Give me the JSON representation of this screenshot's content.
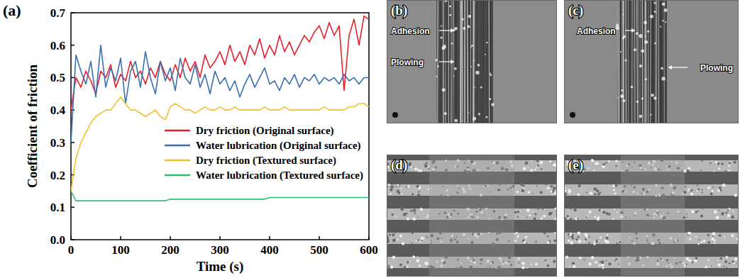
{
  "chart_data": {
    "type": "line",
    "panel_label": "(a)",
    "x_label": "Time (s)",
    "y_label": "Coefficient of friction",
    "x": [
      0,
      10,
      20,
      30,
      40,
      50,
      60,
      70,
      80,
      90,
      100,
      110,
      120,
      130,
      140,
      150,
      160,
      170,
      180,
      190,
      200,
      210,
      220,
      230,
      240,
      250,
      260,
      270,
      280,
      290,
      300,
      310,
      320,
      330,
      340,
      350,
      360,
      370,
      380,
      390,
      400,
      410,
      420,
      430,
      440,
      450,
      460,
      470,
      480,
      490,
      500,
      510,
      520,
      530,
      540,
      550,
      560,
      570,
      580,
      590,
      600
    ],
    "series": [
      {
        "name": "Dry friction (Original surface)",
        "color": "#e8202a",
        "values": [
          0.4,
          0.5,
          0.47,
          0.52,
          0.49,
          0.45,
          0.52,
          0.5,
          0.54,
          0.47,
          0.51,
          0.49,
          0.55,
          0.5,
          0.52,
          0.48,
          0.53,
          0.5,
          0.55,
          0.51,
          0.49,
          0.54,
          0.5,
          0.56,
          0.52,
          0.55,
          0.5,
          0.57,
          0.53,
          0.55,
          0.58,
          0.54,
          0.6,
          0.55,
          0.58,
          0.54,
          0.6,
          0.57,
          0.62,
          0.56,
          0.6,
          0.57,
          0.63,
          0.58,
          0.61,
          0.57,
          0.6,
          0.63,
          0.61,
          0.64,
          0.66,
          0.62,
          0.67,
          0.63,
          0.66,
          0.46,
          0.63,
          0.68,
          0.6,
          0.69,
          0.68
        ]
      },
      {
        "name": "Water lubrication (Original surface)",
        "color": "#3a6fb0",
        "values": [
          0.3,
          0.57,
          0.52,
          0.48,
          0.55,
          0.44,
          0.6,
          0.47,
          0.53,
          0.49,
          0.56,
          0.42,
          0.52,
          0.55,
          0.47,
          0.58,
          0.5,
          0.45,
          0.55,
          0.49,
          0.53,
          0.46,
          0.56,
          0.5,
          0.48,
          0.54,
          0.47,
          0.51,
          0.45,
          0.52,
          0.48,
          0.5,
          0.46,
          0.49,
          0.44,
          0.48,
          0.51,
          0.47,
          0.5,
          0.53,
          0.48,
          0.49,
          0.46,
          0.5,
          0.48,
          0.51,
          0.47,
          0.5,
          0.49,
          0.51,
          0.48,
          0.5,
          0.49,
          0.5,
          0.48,
          0.51,
          0.49,
          0.5,
          0.48,
          0.5,
          0.5
        ]
      },
      {
        "name": "Dry friction (Textured surface)",
        "color": "#f2c12e",
        "values": [
          0.15,
          0.25,
          0.3,
          0.33,
          0.36,
          0.38,
          0.39,
          0.4,
          0.4,
          0.42,
          0.44,
          0.42,
          0.4,
          0.4,
          0.39,
          0.38,
          0.39,
          0.4,
          0.38,
          0.37,
          0.41,
          0.42,
          0.41,
          0.4,
          0.4,
          0.39,
          0.4,
          0.41,
          0.4,
          0.4,
          0.41,
          0.4,
          0.4,
          0.41,
          0.4,
          0.4,
          0.4,
          0.4,
          0.4,
          0.41,
          0.4,
          0.4,
          0.4,
          0.41,
          0.4,
          0.4,
          0.4,
          0.4,
          0.4,
          0.4,
          0.4,
          0.41,
          0.4,
          0.4,
          0.4,
          0.4,
          0.41,
          0.41,
          0.42,
          0.42,
          0.41
        ]
      },
      {
        "name": "Water lubrication (Textured surface)",
        "color": "#2fbf71",
        "values": [
          0.15,
          0.12,
          0.12,
          0.12,
          0.12,
          0.12,
          0.12,
          0.12,
          0.12,
          0.12,
          0.12,
          0.12,
          0.12,
          0.12,
          0.12,
          0.12,
          0.12,
          0.12,
          0.12,
          0.12,
          0.125,
          0.125,
          0.125,
          0.125,
          0.125,
          0.125,
          0.125,
          0.125,
          0.125,
          0.125,
          0.125,
          0.125,
          0.125,
          0.125,
          0.125,
          0.125,
          0.125,
          0.125,
          0.125,
          0.125,
          0.13,
          0.13,
          0.13,
          0.13,
          0.13,
          0.13,
          0.13,
          0.13,
          0.13,
          0.13,
          0.13,
          0.13,
          0.13,
          0.13,
          0.13,
          0.13,
          0.13,
          0.13,
          0.13,
          0.13,
          0.13
        ]
      }
    ],
    "xlim": [
      0,
      600
    ],
    "xticks": [
      0,
      100,
      200,
      300,
      400,
      500,
      600
    ],
    "ylim": [
      0,
      0.7
    ],
    "yticks": [
      {
        "value": 0,
        "label": "0.0"
      },
      0.1,
      0.2,
      0.3,
      0.4,
      0.5,
      0.6,
      0.7
    ],
    "legend": "center",
    "grid": false
  },
  "images": [
    {
      "label": "(b)",
      "annotations": [
        "Adhesion",
        "Plowing"
      ]
    },
    {
      "label": "(c)",
      "annotations": [
        "Adhesion",
        "Plowing"
      ]
    },
    {
      "label": "(d)",
      "annotations": []
    },
    {
      "label": "(e)",
      "annotations": []
    }
  ]
}
